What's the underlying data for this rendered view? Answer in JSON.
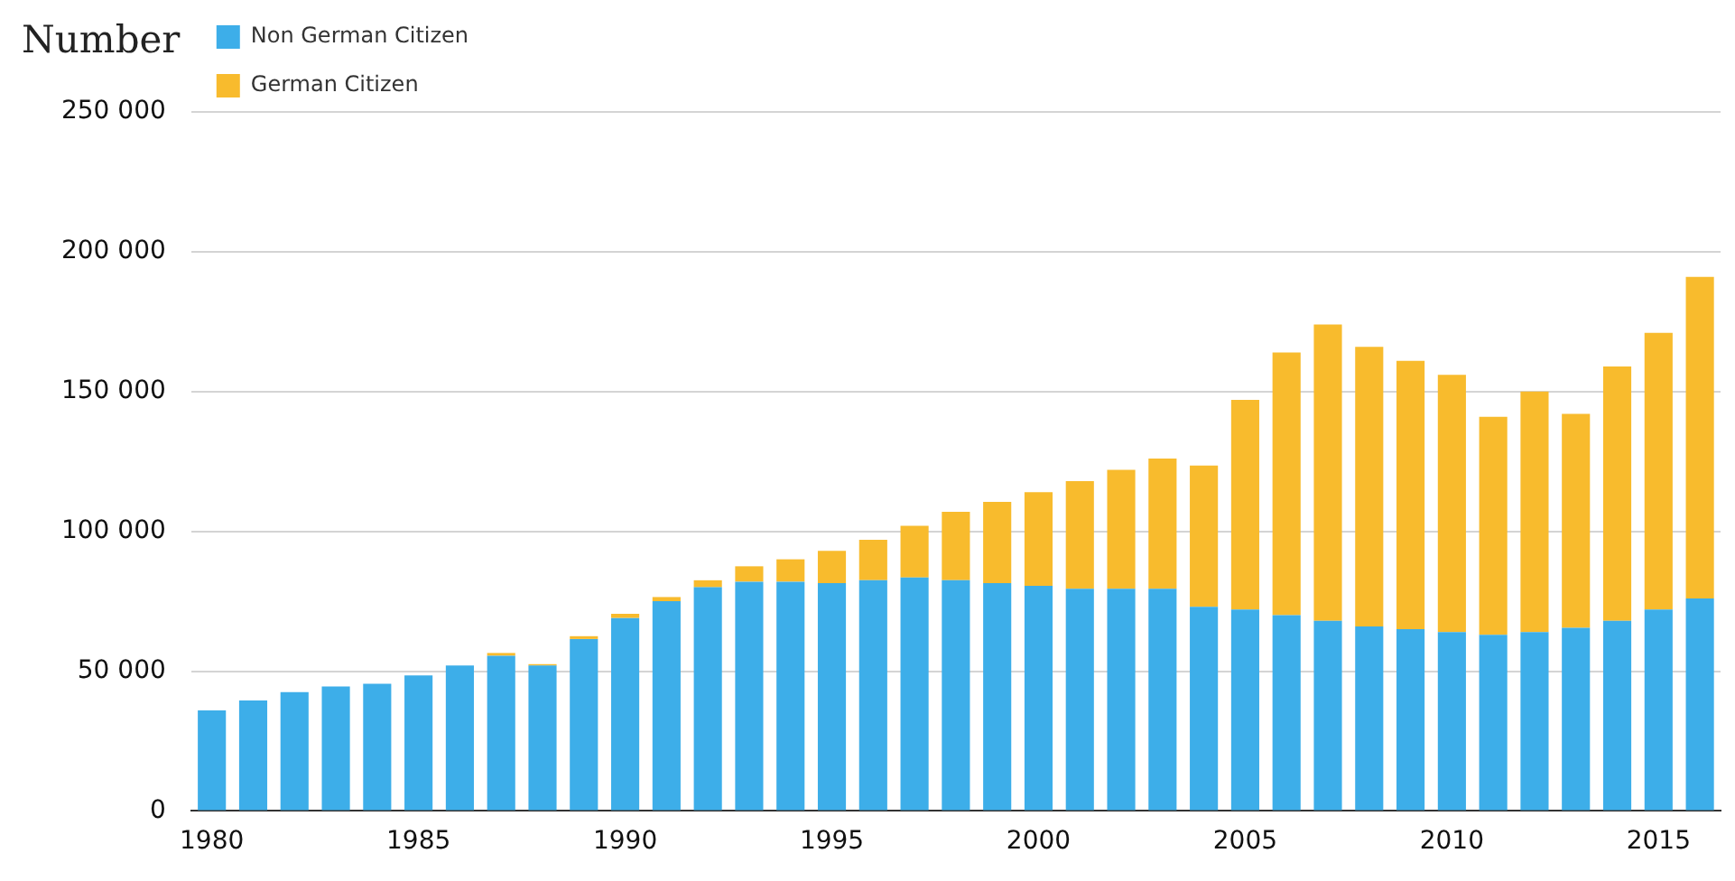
{
  "chart_data": {
    "type": "bar",
    "ylabel": "Number",
    "stacked": true,
    "grid": "y",
    "legend": "top left",
    "categories": [
      "1980",
      null,
      null,
      null,
      null,
      "1985",
      null,
      null,
      null,
      null,
      "1990",
      null,
      null,
      null,
      null,
      "1995",
      null,
      null,
      null,
      null,
      "2000",
      null,
      null,
      null,
      null,
      "2005",
      null,
      null,
      null,
      null,
      "2010",
      null,
      null,
      null,
      null,
      "2015",
      null
    ],
    "ylim": [
      0,
      250000
    ],
    "yticks": [
      {
        "value": 0,
        "label": "0"
      },
      {
        "value": 50000,
        "label": "50 000"
      },
      {
        "value": 100000,
        "label": "100 000"
      },
      {
        "value": 150000,
        "label": "150 000"
      },
      {
        "value": 200000,
        "label": "200 000"
      },
      {
        "value": 250000,
        "label": "250 000"
      }
    ],
    "series": [
      {
        "name": "Non German Citizen",
        "color": "#3daee9",
        "values": [
          36000,
          39500,
          42500,
          44500,
          45500,
          48500,
          52000,
          55500,
          52000,
          61500,
          69000,
          75000,
          80000,
          82000,
          82000,
          81500,
          82500,
          83500,
          82500,
          81500,
          80500,
          79500,
          79500,
          79500,
          73000,
          72000,
          70000,
          68000,
          66000,
          65000,
          64000,
          63000,
          64000,
          65500,
          68000,
          72000,
          76000
        ]
      },
      {
        "name": "German Citizen",
        "color": "#f8bb2d",
        "values": [
          0,
          0,
          0,
          0,
          0,
          0,
          0,
          1000,
          500,
          1000,
          1500,
          1500,
          2500,
          5500,
          8000,
          11500,
          14500,
          18500,
          24500,
          29000,
          33500,
          38500,
          42500,
          46500,
          50500,
          75000,
          94000,
          106000,
          100000,
          96000,
          92000,
          78000,
          86000,
          76500,
          91000,
          99000,
          115000
        ]
      }
    ]
  }
}
